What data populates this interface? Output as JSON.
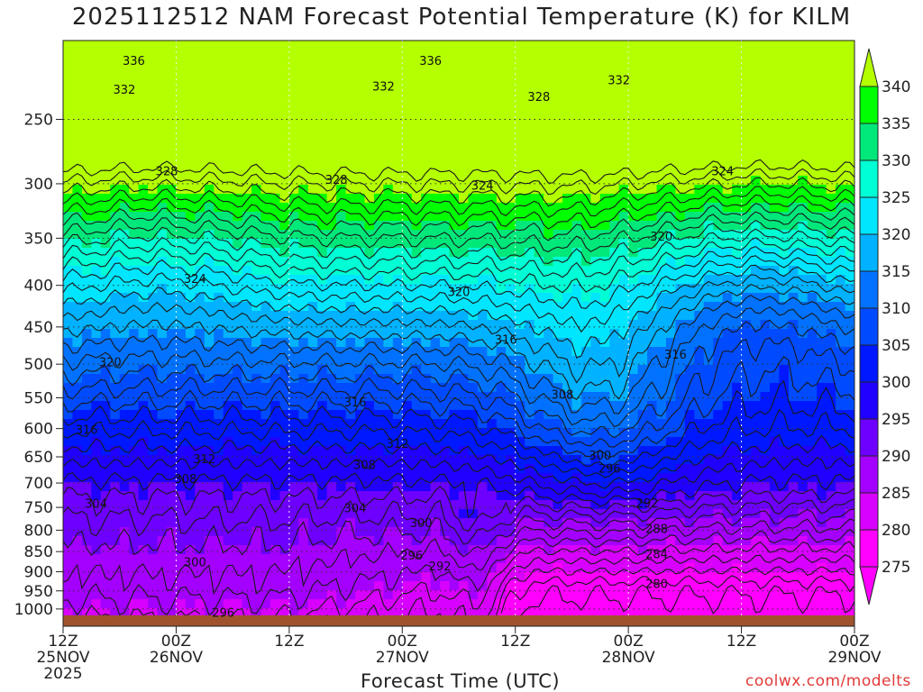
{
  "chart_data": {
    "type": "heatmap",
    "title": "2025112512 NAM Forecast Potential Temperature (K) for KILM",
    "xlabel": "Forecast Time (UTC)",
    "credit": "coolwx.com/modelts",
    "y_axis": {
      "quantity": "pressure (hPa)",
      "scale": "log",
      "range": [
        200,
        1050
      ],
      "ticks": [
        250,
        300,
        350,
        400,
        450,
        500,
        550,
        600,
        650,
        700,
        750,
        800,
        850,
        900,
        950,
        1000
      ]
    },
    "x_axis": {
      "range": [
        "2025-11-25T12:00Z",
        "2025-11-29T00:00Z"
      ],
      "ticks": [
        {
          "line1": "12Z",
          "line2": "25NOV",
          "line3": "2025"
        },
        {
          "line1": "00Z",
          "line2": "26NOV",
          "line3": ""
        },
        {
          "line1": "12Z",
          "line2": "",
          "line3": ""
        },
        {
          "line1": "00Z",
          "line2": "27NOV",
          "line3": ""
        },
        {
          "line1": "12Z",
          "line2": "",
          "line3": ""
        },
        {
          "line1": "00Z",
          "line2": "28NOV",
          "line3": ""
        },
        {
          "line1": "12Z",
          "line2": "",
          "line3": ""
        },
        {
          "line1": "00Z",
          "line2": "29NOV",
          "line3": ""
        }
      ]
    },
    "grid": true,
    "colorbar": {
      "labels": [
        "340",
        "335",
        "330",
        "325",
        "320",
        "315",
        "310",
        "305",
        "300",
        "295",
        "290",
        "285",
        "280",
        "275"
      ],
      "colors": [
        "#b4ff00",
        "#00ff00",
        "#00e87a",
        "#00ffd4",
        "#00e6ff",
        "#00b2ff",
        "#0072ff",
        "#004bff",
        "#0018ff",
        "#2000ff",
        "#6e00ff",
        "#a400ff",
        "#d800ff",
        "#ff00ff"
      ]
    },
    "contour_labels": [
      {
        "text": "336",
        "t": 7.5,
        "p": 212
      },
      {
        "text": "336",
        "t": 39,
        "p": 212
      },
      {
        "text": "332",
        "t": 6.5,
        "p": 230
      },
      {
        "text": "332",
        "t": 34,
        "p": 228
      },
      {
        "text": "332",
        "t": 59,
        "p": 224
      },
      {
        "text": "328",
        "t": 50.5,
        "p": 235
      },
      {
        "text": "328",
        "t": 11,
        "p": 290
      },
      {
        "text": "328",
        "t": 29,
        "p": 297
      },
      {
        "text": "324",
        "t": 44.5,
        "p": 302
      },
      {
        "text": "324",
        "t": 70,
        "p": 290
      },
      {
        "text": "324",
        "t": 14,
        "p": 393
      },
      {
        "text": "320",
        "t": 63.5,
        "p": 349
      },
      {
        "text": "320",
        "t": 42,
        "p": 408
      },
      {
        "text": "320",
        "t": 5,
        "p": 498
      },
      {
        "text": "316",
        "t": 47,
        "p": 467
      },
      {
        "text": "316",
        "t": 65,
        "p": 487
      },
      {
        "text": "316",
        "t": 31,
        "p": 558
      },
      {
        "text": "316",
        "t": 2.5,
        "p": 603
      },
      {
        "text": "312",
        "t": 35.5,
        "p": 627
      },
      {
        "text": "312",
        "t": 15,
        "p": 655
      },
      {
        "text": "308",
        "t": 53,
        "p": 546
      },
      {
        "text": "308",
        "t": 32,
        "p": 666
      },
      {
        "text": "308",
        "t": 13,
        "p": 693
      },
      {
        "text": "304",
        "t": 3.5,
        "p": 743
      },
      {
        "text": "304",
        "t": 31,
        "p": 753
      },
      {
        "text": "300",
        "t": 38,
        "p": 785
      },
      {
        "text": "300",
        "t": 57,
        "p": 648
      },
      {
        "text": "300",
        "t": 14,
        "p": 877
      },
      {
        "text": "296",
        "t": 58,
        "p": 673
      },
      {
        "text": "296",
        "t": 37,
        "p": 860
      },
      {
        "text": "296",
        "t": 17,
        "p": 1012
      },
      {
        "text": "292",
        "t": 40,
        "p": 887
      },
      {
        "text": "292",
        "t": 62,
        "p": 742
      },
      {
        "text": "288",
        "t": 63,
        "p": 798
      },
      {
        "text": "284",
        "t": 63,
        "p": 857
      },
      {
        "text": "280",
        "t": 63,
        "p": 932
      }
    ]
  }
}
